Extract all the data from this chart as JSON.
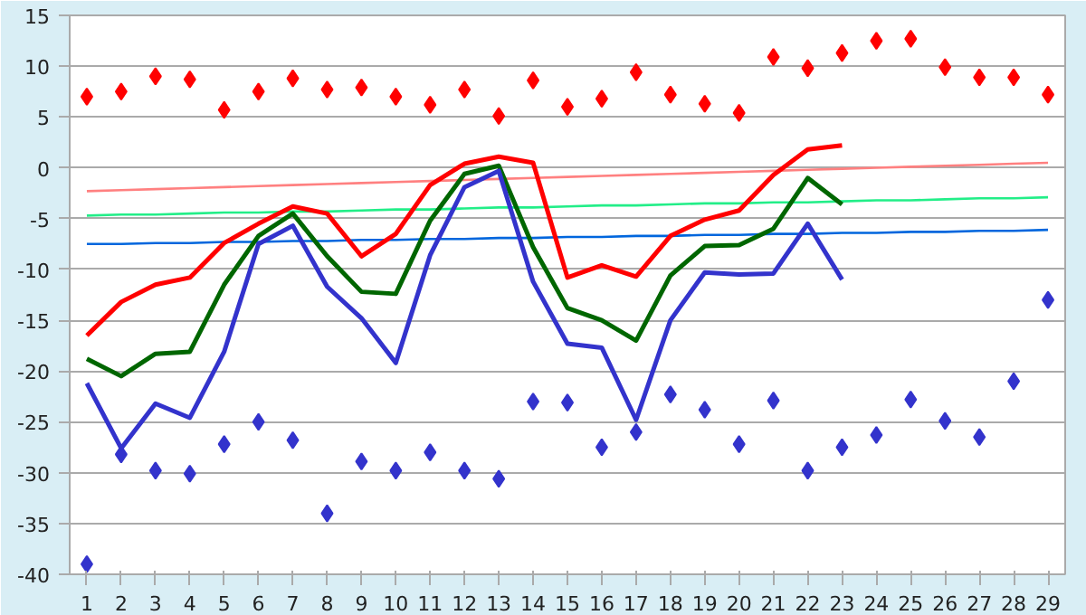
{
  "chart_data": {
    "type": "line",
    "x": [
      1,
      2,
      3,
      4,
      5,
      6,
      7,
      8,
      9,
      10,
      11,
      12,
      13,
      14,
      15,
      16,
      17,
      18,
      19,
      20,
      21,
      22,
      23,
      24,
      25,
      26,
      27,
      28,
      29
    ],
    "xlim": [
      0.5,
      29.5
    ],
    "xticks": [
      1,
      2,
      3,
      4,
      5,
      6,
      7,
      8,
      9,
      10,
      11,
      12,
      13,
      14,
      15,
      16,
      17,
      18,
      19,
      20,
      21,
      22,
      23,
      24,
      25,
      26,
      27,
      28,
      29
    ],
    "ylim": [
      -40,
      15
    ],
    "yticks": [
      -40,
      -35,
      -30,
      -25,
      -20,
      -15,
      -10,
      -5,
      0,
      5,
      10,
      15
    ],
    "grid": "y",
    "series": [
      {
        "type": "scatter",
        "marker": "diamond",
        "color": "#ff0000",
        "values": [
          7.0,
          7.5,
          9.0,
          8.7,
          5.7,
          7.5,
          8.8,
          7.7,
          7.9,
          7.0,
          6.2,
          7.7,
          5.1,
          8.6,
          6.0,
          6.8,
          9.4,
          7.2,
          6.3,
          5.4,
          10.9,
          9.8,
          11.3,
          12.5,
          12.7,
          9.9,
          8.9,
          8.9,
          7.2
        ]
      },
      {
        "type": "scatter",
        "marker": "diamond",
        "color": "#3333cc",
        "values": [
          -39,
          -28.2,
          -29.8,
          -30.1,
          -27.2,
          -25,
          -26.8,
          -34,
          -28.9,
          -29.8,
          -28,
          -29.8,
          -30.6,
          -23,
          -23.1,
          -27.5,
          -26,
          -22.3,
          -23.8,
          -27.2,
          -22.9,
          -29.8,
          -27.5,
          -26.3,
          -22.8,
          -24.9,
          -26.5,
          -21,
          -13
        ]
      },
      {
        "type": "line",
        "color": "#ff8080",
        "values": [
          -2.3,
          -2.2,
          -2.1,
          -2.0,
          -1.9,
          -1.8,
          -1.7,
          -1.6,
          -1.5,
          -1.4,
          -1.3,
          -1.2,
          -1.1,
          -1.0,
          -0.9,
          -0.8,
          -0.7,
          -0.6,
          -0.5,
          -0.4,
          -0.3,
          -0.2,
          -0.1,
          0.0,
          0.1,
          0.2,
          0.3,
          0.4,
          0.5
        ]
      },
      {
        "type": "line",
        "color": "#22ee88",
        "values": [
          -4.7,
          -4.6,
          -4.6,
          -4.5,
          -4.4,
          -4.4,
          -4.3,
          -4.3,
          -4.2,
          -4.1,
          -4.1,
          -4.0,
          -3.9,
          -3.9,
          -3.8,
          -3.7,
          -3.7,
          -3.6,
          -3.5,
          -3.5,
          -3.4,
          -3.4,
          -3.3,
          -3.2,
          -3.2,
          -3.1,
          -3.0,
          -3.0,
          -2.9
        ]
      },
      {
        "type": "line",
        "color": "#0066dd",
        "values": [
          -7.5,
          -7.5,
          -7.4,
          -7.4,
          -7.3,
          -7.3,
          -7.2,
          -7.2,
          -7.1,
          -7.1,
          -7.0,
          -7.0,
          -6.9,
          -6.9,
          -6.8,
          -6.8,
          -6.7,
          -6.7,
          -6.6,
          -6.6,
          -6.5,
          -6.5,
          -6.4,
          -6.4,
          -6.3,
          -6.3,
          -6.2,
          -6.2,
          -6.1
        ]
      },
      {
        "color": "#ff0000",
        "values": [
          -16.5,
          -13.2,
          -11.5,
          -10.8,
          -7.4,
          -5.5,
          -3.8,
          -4.5,
          -8.7,
          -6.5,
          -1.7,
          0.4,
          1.1,
          0.5,
          -10.8,
          -9.6,
          -10.7,
          -6.7,
          -5.1,
          -4.2,
          -0.7,
          1.8,
          2.2,
          null,
          null,
          null,
          null,
          null,
          null
        ]
      },
      {
        "color": "#006600",
        "values": [
          -18.8,
          -20.5,
          -18.3,
          -18.1,
          -11.5,
          -6.7,
          -4.5,
          -8.7,
          -12.2,
          -12.4,
          -5.2,
          -0.6,
          0.2,
          -7.8,
          -13.8,
          -15,
          -17,
          -10.6,
          -7.7,
          -7.6,
          -6,
          -1,
          -3.6,
          null,
          null,
          null,
          null,
          null,
          null
        ]
      },
      {
        "color": "#3333cc",
        "values": [
          -21.2,
          -27.6,
          -23.2,
          -24.6,
          -18.1,
          -7.5,
          -5.7,
          -11.7,
          -14.8,
          -19.2,
          -8.6,
          -1.9,
          -0.3,
          -11.2,
          -17.3,
          -17.7,
          -24.8,
          -15,
          -10.3,
          -10.5,
          -10.4,
          -5.5,
          -11,
          null,
          null,
          null,
          null,
          null,
          null
        ]
      }
    ]
  }
}
